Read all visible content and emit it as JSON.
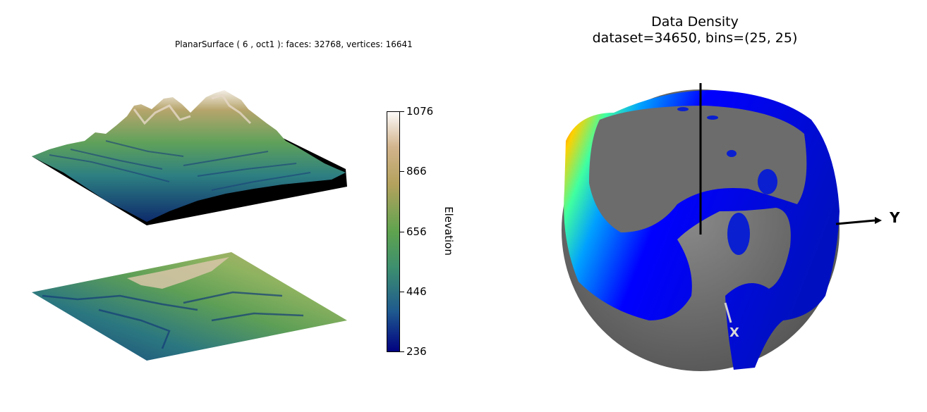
{
  "chart_data": [
    {
      "type": "surface3d",
      "title": "PlanarSurface ( 6 , oct1 ):  faces: 32768,  vertices: 16641",
      "faces": 32768,
      "vertices": 16641,
      "panels": [
        "3d-elevation-surface",
        "flat-elevation-map"
      ],
      "colormap": "gist_earth",
      "colorbar": {
        "label": "Elevation",
        "ticks": [
          1076,
          866,
          656,
          446,
          236
        ],
        "range": [
          236,
          1076
        ]
      }
    },
    {
      "type": "heatmap",
      "title": "Data Density\ndataset=34650, bins=(25, 25)",
      "title_lines": [
        "Data Density",
        "dataset=34650, bins=(25, 25)"
      ],
      "dataset": 34650,
      "bins": [
        25,
        25
      ],
      "projection": "sphere",
      "colormap": "jet",
      "axis_labels": [
        "Y",
        "X"
      ]
    }
  ],
  "colors": {
    "colormap_gist_earth": [
      "#000080",
      "#1f5a8f",
      "#3d8f6f",
      "#6aa84f",
      "#b5a25e",
      "#d2b48c",
      "#fdfbfb"
    ],
    "colormap_jet": [
      "#000090",
      "#0000ff",
      "#00a0ff",
      "#00ffff",
      "#80ff80",
      "#ffff00",
      "#ff8000",
      "#ff0000",
      "#800000"
    ],
    "sphere_gray": "#6e6e6e"
  }
}
